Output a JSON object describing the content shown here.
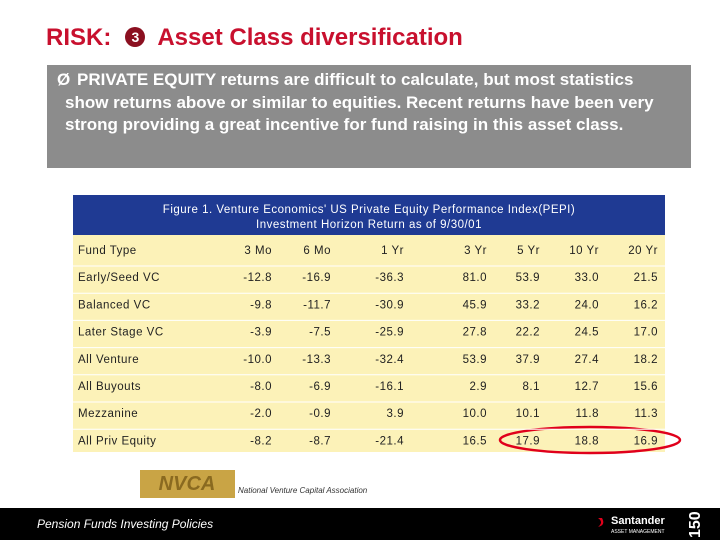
{
  "header": {
    "prefix": "RISK:",
    "number": "3",
    "title": "Asset Class diversification"
  },
  "bullet": {
    "symbol": "Ø",
    "text": "PRIVATE EQUITY returns are difficult to calculate, but most statistics show returns above or similar to equities.  Recent returns have been very strong providing a great incentive for fund raising in this asset class."
  },
  "table": {
    "caption": [
      "Figure 1. Venture Economics' US Private Equity Performance Index(PEPI)",
      "Investment Horizon Return as of 9/30/01"
    ],
    "columns": [
      "Fund Type",
      "3 Mo",
      "6 Mo",
      "1 Yr",
      "3 Yr",
      "5 Yr",
      "10 Yr",
      "20 Yr"
    ],
    "rows": [
      [
        "Early/Seed VC",
        "-12.8",
        "-16.9",
        "-36.3",
        "81.0",
        "53.9",
        "33.0",
        "21.5"
      ],
      [
        "Balanced VC",
        "-9.8",
        "-11.7",
        "-30.9",
        "45.9",
        "33.2",
        "24.0",
        "16.2"
      ],
      [
        "Later Stage VC",
        "-3.9",
        "-7.5",
        "-25.9",
        "27.8",
        "22.2",
        "24.5",
        "17.0"
      ],
      [
        "All Venture",
        "-10.0",
        "-13.3",
        "-32.4",
        "53.9",
        "37.9",
        "27.4",
        "18.2"
      ],
      [
        "All Buyouts",
        "-8.0",
        "-6.9",
        "-16.1",
        "2.9",
        "8.1",
        "12.7",
        "15.6"
      ],
      [
        "Mezzanine",
        "-2.0",
        "-0.9",
        "3.9",
        "10.0",
        "10.1",
        "11.8",
        "11.3"
      ],
      [
        "All Priv Equity",
        "-8.2",
        "-8.7",
        "-21.4",
        "16.5",
        "17.9",
        "18.8",
        "16.9"
      ]
    ]
  },
  "logo": {
    "mark": "NVCA",
    "name": "National Venture Capital Association"
  },
  "footer": {
    "text": "Pension Funds Investing Policies",
    "brand": "Santander",
    "brand_sub": "ASSET MANAGEMENT",
    "anniversary": "150"
  }
}
